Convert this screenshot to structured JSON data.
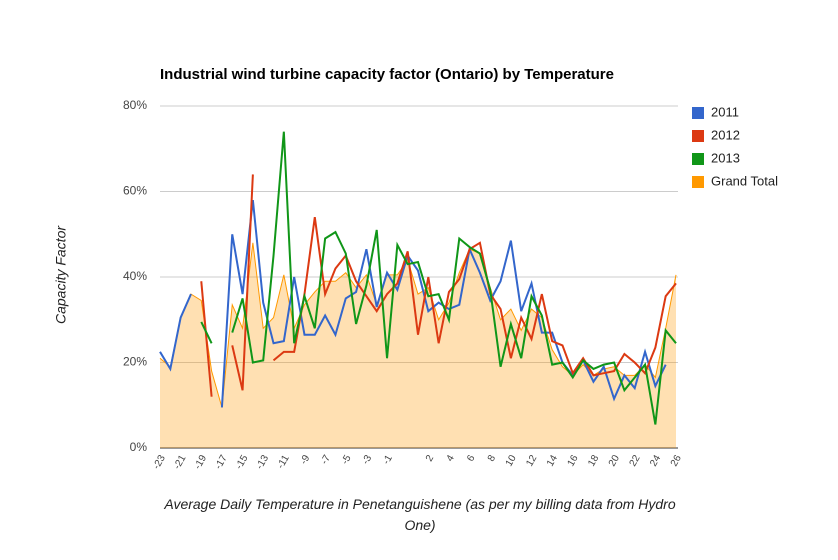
{
  "chart_data": {
    "type": "line",
    "title": "Industrial wind turbine capacity factor (Ontario) by Temperature",
    "y_label": "Capacity Factor",
    "x_label": "Average Daily Temperature in Penetanguishene (as per my billing data from Hydro One)",
    "categories": [
      -23,
      null,
      -21,
      null,
      -19,
      null,
      -17,
      null,
      -15,
      null,
      -13,
      null,
      -11,
      null,
      -9,
      null,
      -7,
      null,
      -5,
      null,
      -3,
      null,
      -1,
      null,
      null,
      null,
      2,
      null,
      4,
      null,
      6,
      null,
      8,
      null,
      10,
      null,
      12,
      null,
      14,
      null,
      16,
      null,
      18,
      null,
      20,
      null,
      22,
      null,
      24,
      null,
      26
    ],
    "ylim": [
      0,
      80
    ],
    "yticks": [
      {
        "value": 0,
        "label": "0%"
      },
      {
        "value": 20,
        "label": "20%"
      },
      {
        "value": 40,
        "label": "40%"
      },
      {
        "value": 60,
        "label": "60%"
      },
      {
        "value": 80,
        "label": "80%"
      }
    ],
    "grid": true,
    "legend": "right",
    "series": [
      {
        "name": "Grand Total",
        "color": "#ff9900",
        "style": "area",
        "values": [
          21,
          19,
          30.5,
          36,
          34.5,
          18,
          9.5,
          33.5,
          28,
          48,
          28,
          30.5,
          40.5,
          28,
          33.5,
          36.5,
          39,
          39,
          41,
          37.5,
          40.5,
          33.5,
          40.5,
          40.5,
          44,
          36,
          37.5,
          30,
          34,
          41,
          46.5,
          45.5,
          37.5,
          30,
          32.5,
          27.5,
          32.5,
          30.5,
          23,
          19,
          17,
          19.5,
          17,
          18.5,
          19,
          17,
          17,
          19.5,
          16.5,
          28,
          40.5
        ]
      },
      {
        "name": "2011",
        "color": "#3366cc",
        "style": "line",
        "values": [
          22.5,
          18.5,
          30.5,
          36,
          null,
          null,
          9.5,
          50,
          36,
          58,
          34,
          24.5,
          25,
          40,
          26.5,
          26.5,
          31,
          26.5,
          35,
          36.5,
          46.5,
          33,
          41,
          37,
          45,
          41.5,
          32,
          34,
          32.5,
          33.5,
          46.5,
          41,
          34.5,
          39,
          48.5,
          32,
          38.5,
          27,
          27,
          20,
          17,
          20.5,
          15.5,
          19,
          11.5,
          17,
          14,
          22.5,
          14.5,
          19.5,
          null
        ]
      },
      {
        "name": "2012",
        "color": "#dc3912",
        "style": "line",
        "values": [
          null,
          null,
          null,
          null,
          39,
          12,
          null,
          24,
          13.5,
          64,
          null,
          20.5,
          22.5,
          22.5,
          36,
          54,
          36,
          42,
          45,
          39,
          35.5,
          32,
          36,
          38.5,
          46,
          26.5,
          40,
          24.5,
          36.5,
          39.5,
          46.5,
          48,
          36,
          32.5,
          21,
          30.5,
          25.5,
          36,
          25,
          24,
          17.5,
          21,
          17,
          17.5,
          18,
          22,
          20,
          17.5,
          23.5,
          35.5,
          38.5
        ]
      },
      {
        "name": "2013",
        "color": "#109618",
        "style": "line",
        "values": [
          null,
          null,
          null,
          null,
          29.5,
          24.5,
          null,
          27,
          35,
          20,
          20.5,
          45,
          74,
          24.5,
          35.5,
          28,
          49,
          50.5,
          45.5,
          29,
          38,
          51,
          21,
          47.5,
          43,
          43.5,
          35.5,
          36,
          30,
          49,
          47,
          45.5,
          37,
          19,
          29,
          21,
          35.5,
          31,
          19.5,
          20,
          16.5,
          20.5,
          18.5,
          19.5,
          20,
          13.5,
          16.5,
          19.5,
          5.5,
          27.5,
          24.5
        ]
      }
    ]
  }
}
